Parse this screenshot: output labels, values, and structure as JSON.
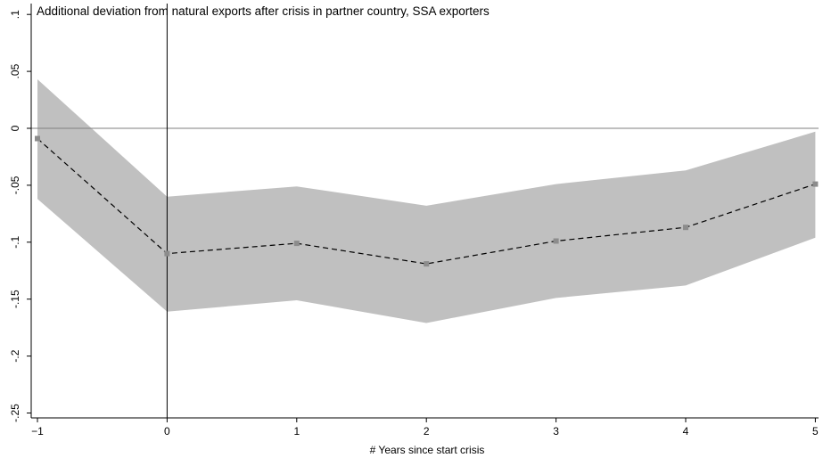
{
  "chart_data": {
    "type": "line",
    "title": "Additional deviation from natural exports after crisis in partner country, SSA exporters",
    "xlabel": "# Years since start crisis",
    "ylabel": "",
    "x": [
      -1,
      0,
      1,
      2,
      3,
      4,
      5
    ],
    "x_tick_labels": [
      "−1",
      "0",
      "1",
      "2",
      "3",
      "4",
      "5"
    ],
    "y_ticks": [
      0.1,
      0.05,
      0,
      -0.05,
      -0.1,
      -0.15,
      -0.2,
      -0.25
    ],
    "y_tick_labels": [
      ".1",
      ".05",
      "0",
      "-.05",
      "-.1",
      "-.15",
      "-.2",
      "-.25"
    ],
    "xlim": [
      -1,
      5
    ],
    "ylim": [
      -0.26,
      0.1
    ],
    "series": [
      {
        "style": "dashed",
        "values": [
          -0.009,
          -0.11,
          -0.101,
          -0.119,
          -0.099,
          -0.087,
          -0.049
        ]
      }
    ],
    "confidence_band": {
      "upper": [
        0.043,
        -0.06,
        -0.051,
        -0.068,
        -0.049,
        -0.037,
        -0.003
      ],
      "lower": [
        -0.062,
        -0.161,
        -0.151,
        -0.171,
        -0.149,
        -0.138,
        -0.096
      ]
    },
    "reference_lines": {
      "horizontal_y": 0,
      "vertical_x": 0
    },
    "grid": false,
    "colors": {
      "band": "#c0c0c0",
      "line": "#000000",
      "marker": "#8c8c8c",
      "reference": "#7f7f7f"
    }
  }
}
